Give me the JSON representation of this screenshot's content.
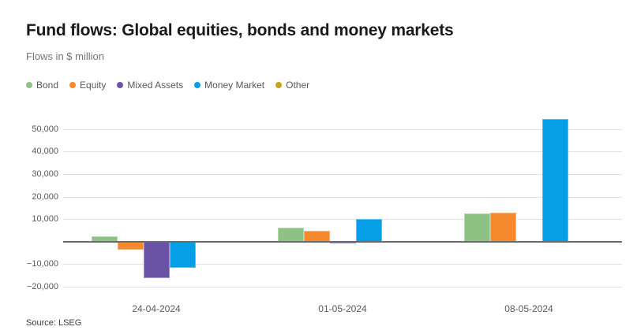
{
  "header": {
    "title": "Fund flows: Global equities, bonds and money markets",
    "subtitle": "Flows in $ million"
  },
  "footer": {
    "source": "Source: LSEG"
  },
  "chart_data": {
    "type": "bar",
    "title": "Fund flows: Global equities, bonds and money markets",
    "subtitle": "Flows in $ million",
    "grid": true,
    "legend_position": "top",
    "categories": [
      "24-04-2024",
      "01-05-2024",
      "08-05-2024"
    ],
    "series": [
      {
        "name": "Bond",
        "color": "#8ec284",
        "values": [
          2300,
          6200,
          12400
        ]
      },
      {
        "name": "Equity",
        "color": "#f6892d",
        "values": [
          -3400,
          4700,
          12800
        ]
      },
      {
        "name": "Mixed Assets",
        "color": "#6a52a5",
        "values": [
          -16000,
          -900,
          -300
        ]
      },
      {
        "name": "Money Market",
        "color": "#049fe6",
        "values": [
          -11600,
          10000,
          54400
        ]
      },
      {
        "name": "Other",
        "color": "#cba11d",
        "values": [
          300,
          0,
          -400
        ]
      }
    ],
    "yticks": [
      {
        "value": 50000,
        "label": "50,000"
      },
      {
        "value": 40000,
        "label": "40,000"
      },
      {
        "value": 30000,
        "label": "30,000"
      },
      {
        "value": 20000,
        "label": "20,000"
      },
      {
        "value": 10000,
        "label": "10,000"
      },
      {
        "value": 0,
        "label": ""
      },
      {
        "value": -10000,
        "label": "−10,000"
      },
      {
        "value": -20000,
        "label": "−20,000"
      }
    ],
    "ylim": [
      -24500,
      55500
    ],
    "colors": {
      "grid": "#e2e2e2",
      "zero_axis": "#6b6b6b",
      "title_text": "#1a1a1a",
      "muted_text": "#595959"
    }
  }
}
